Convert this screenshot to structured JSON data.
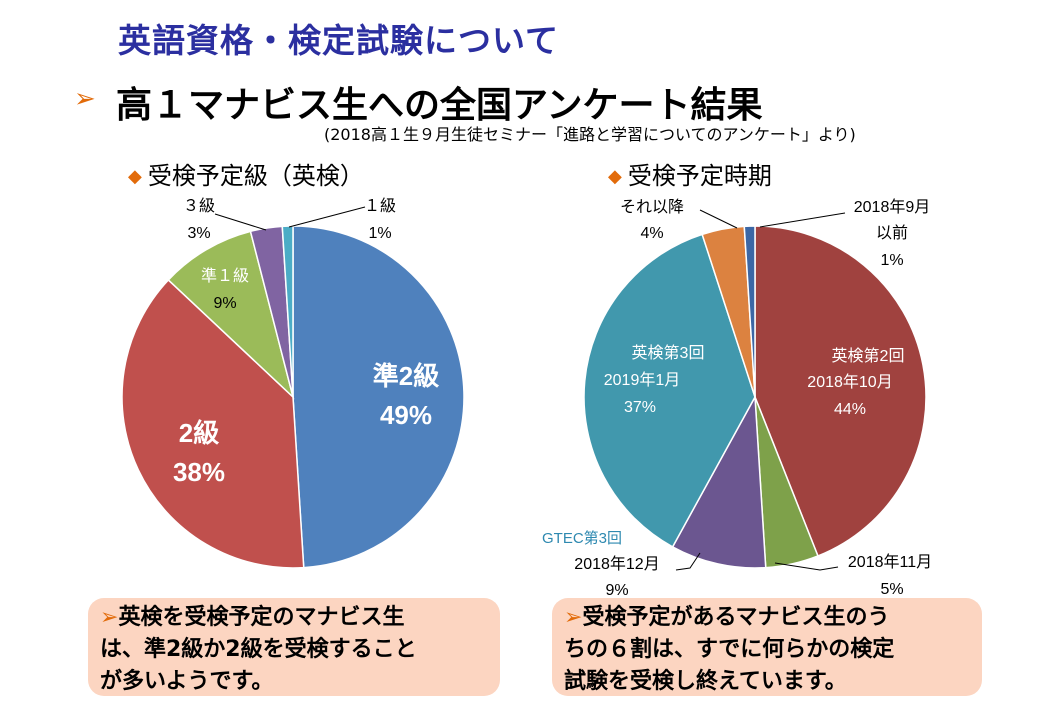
{
  "header": {
    "title": "英語資格・検定試験について",
    "bullet": "➢",
    "subtitle": "高１マナビス生への全国アンケート結果",
    "source": "(2018高１生９月生徒セミナー「進路と学習についてのアンケート」より)"
  },
  "chart_data": [
    {
      "type": "pie",
      "title": "受検予定級（英検）",
      "categories": [
        "準2級",
        "2級",
        "準1級",
        "3級",
        "1級"
      ],
      "values": [
        49,
        38,
        9,
        3,
        1
      ],
      "value_labels": [
        "49%",
        "38%",
        "9%",
        "3%",
        "1%"
      ],
      "colors": [
        "#4f81bd",
        "#c0504d",
        "#9bbb59",
        "#8064a2",
        "#4bacc6"
      ]
    },
    {
      "type": "pie",
      "title": "受検予定時期",
      "categories": [
        "英検第2回 2018年10月",
        "2018年11月",
        "GTEC第3回 2018年12月",
        "英検第3回 2019年1月",
        "それ以降",
        "2018年9月以前"
      ],
      "values": [
        44,
        5,
        9,
        37,
        4,
        1
      ],
      "value_labels": [
        "44%",
        "5%",
        "9%",
        "37%",
        "4%",
        "1%"
      ],
      "colors": [
        "#a0423f",
        "#7ea14a",
        "#6b5690",
        "#4198ad",
        "#dc8240",
        "#3c67a5"
      ]
    }
  ],
  "labels": {
    "c1": {
      "jun2": "準2級",
      "jun2_pct": "49%",
      "kyu2": "2級",
      "kyu2_pct": "38%",
      "jun1": "準１級",
      "jun1_pct": "9%",
      "kyu3": "３級",
      "kyu3_pct": "3%",
      "kyu1": "１級",
      "kyu1_pct": "1%"
    },
    "c2": {
      "s1": "2018年9月",
      "s2": "以前",
      "s_pct": "1%",
      "e1": "英検第2回",
      "e2": "2018年10月",
      "e_pct": "44%",
      "n1": "2018年11月",
      "n_pct": "5%",
      "g1": "GTEC第3回",
      "g2": "2018年12月",
      "g_pct": "9%",
      "j1": "英検第3回",
      "j2": "2019年1月",
      "j_pct": "37%",
      "l1": "それ以降",
      "l_pct": "4%"
    }
  },
  "notes": {
    "left": [
      "英検を受検予定のマナビス生",
      "は、準2級か2級を受検すること",
      "が多いようです。"
    ],
    "right": [
      "受検予定があるマナビス生のう",
      "ちの６割は、すでに何らかの検定",
      "試験を受検し終えています。"
    ],
    "arrow": "➢"
  }
}
